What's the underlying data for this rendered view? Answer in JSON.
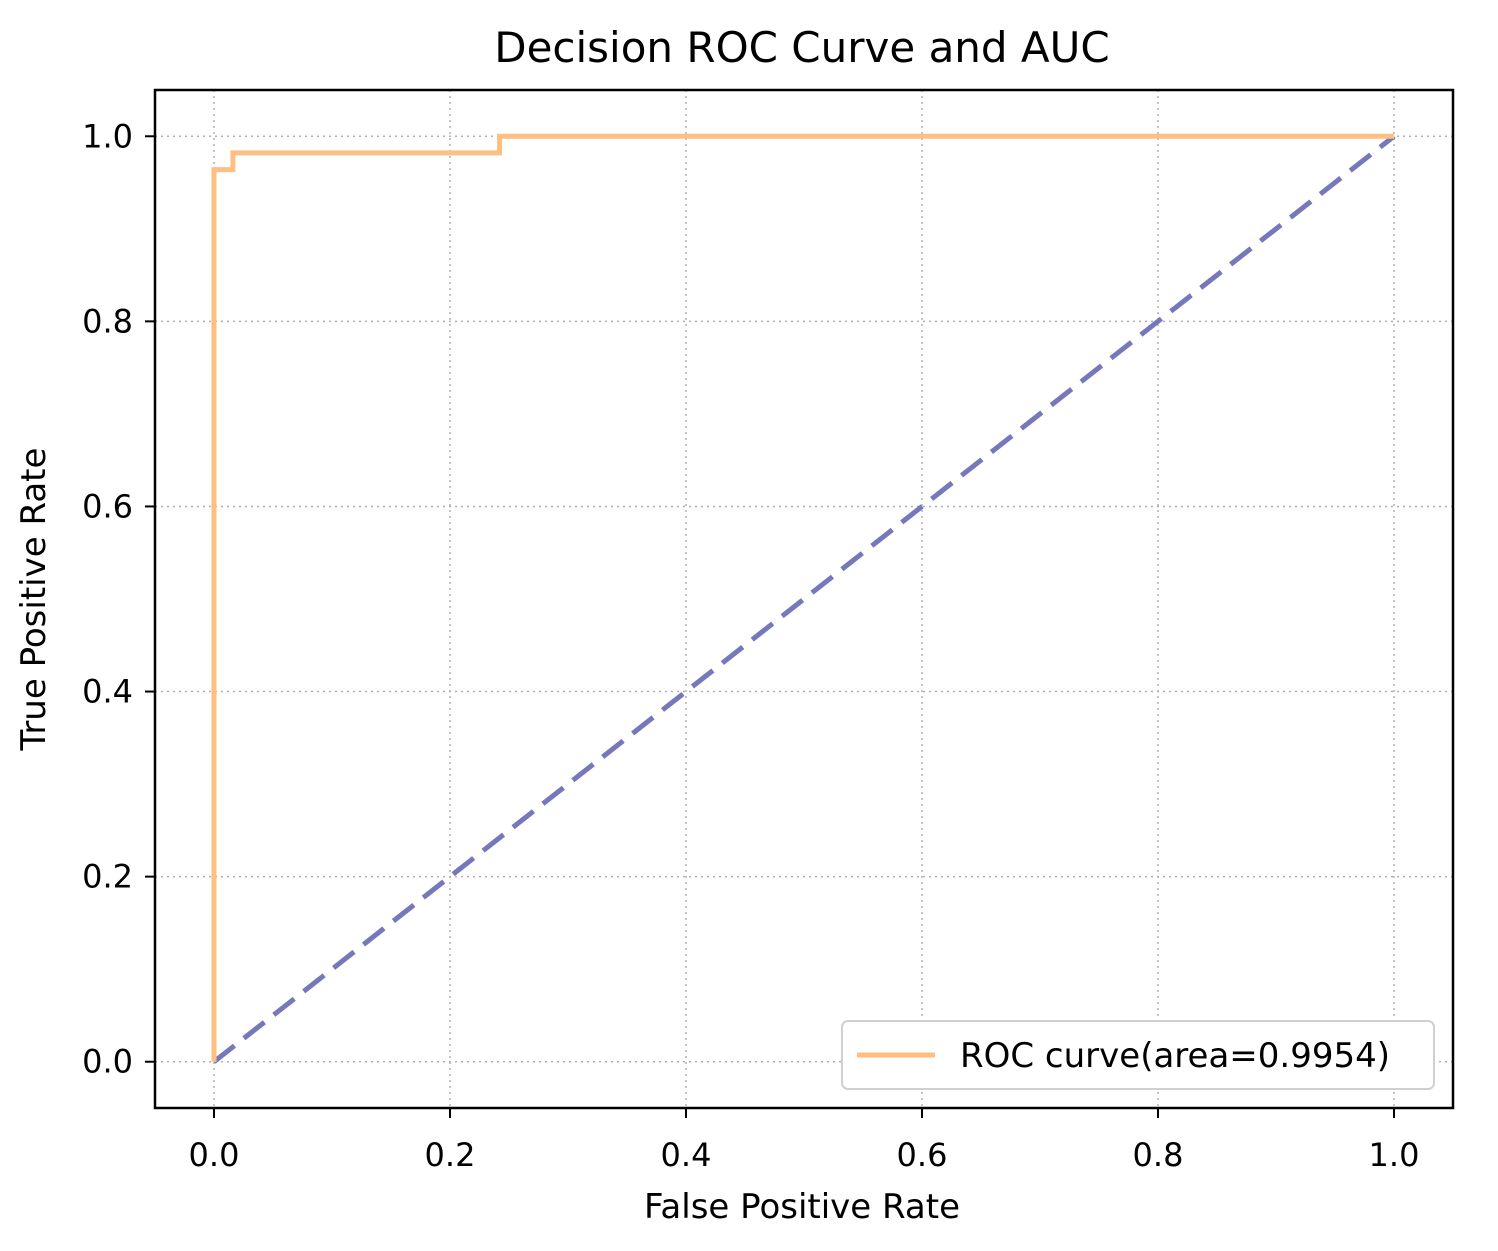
{
  "chart_data": {
    "type": "line",
    "title": "Decision ROC Curve and AUC",
    "xlabel": "False Positive Rate",
    "ylabel": "True Positive Rate",
    "xlim": [
      -0.05,
      1.05
    ],
    "ylim": [
      -0.05,
      1.05
    ],
    "xticks": [
      0.0,
      0.2,
      0.4,
      0.6,
      0.8,
      1.0
    ],
    "yticks": [
      0.0,
      0.2,
      0.4,
      0.6,
      0.8,
      1.0
    ],
    "xtick_labels": [
      "0.0",
      "0.2",
      "0.4",
      "0.6",
      "0.8",
      "1.0"
    ],
    "ytick_labels": [
      "0.0",
      "0.2",
      "0.4",
      "0.6",
      "0.8",
      "1.0"
    ],
    "grid": true,
    "grid_style": "dotted",
    "legend_position": "lower-right",
    "series": [
      {
        "name": "ROC curve(area=0.9954)",
        "color": "#ffbf80",
        "line_style": "solid",
        "x": [
          0.0,
          0.0,
          0.016,
          0.016,
          0.242,
          0.242,
          1.0
        ],
        "y": [
          0.0,
          0.964,
          0.964,
          0.982,
          0.982,
          1.0,
          1.0
        ]
      },
      {
        "color": "#7777bb",
        "line_style": "dashed",
        "x": [
          0.0,
          1.0
        ],
        "y": [
          0.0,
          1.0
        ]
      }
    ]
  }
}
